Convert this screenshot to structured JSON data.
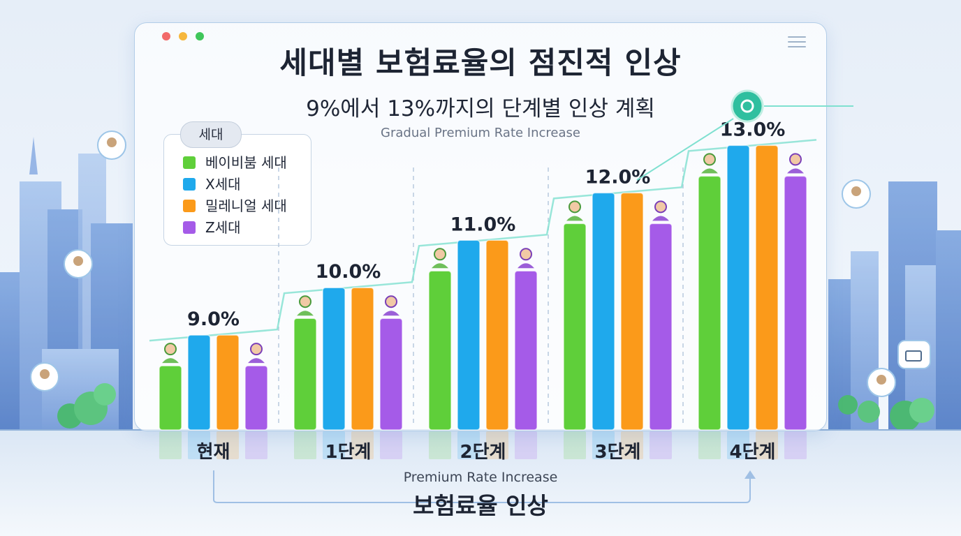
{
  "title": "세대별 보험료율의 점진적 인상",
  "subtitle": "9%에서 13%까지의 단계별 인상 계획",
  "caption": "Gradual Premium Rate Increase",
  "footer": {
    "caption": "Premium Rate Increase",
    "title": "보험료율 인상"
  },
  "legend": {
    "title": "세대"
  },
  "colors": {
    "green": "#5fcf3a",
    "blue": "#1fa9ec",
    "orange": "#fb9a1a",
    "purple": "#a55be8",
    "window_dots": [
      "#f26a6a",
      "#f6b73c",
      "#3fc65a"
    ]
  },
  "icons": [
    "person-avatar-icon",
    "gear-icon",
    "menu-icon",
    "chart-icon",
    "arrow-up-icon"
  ],
  "chart_data": {
    "type": "bar",
    "categories": [
      "현재",
      "1단계",
      "2단계",
      "3단계",
      "4단계"
    ],
    "stage_labels": [
      "9.0%",
      "10.0%",
      "11.0%",
      "12.0%",
      "13.0%"
    ],
    "series": [
      {
        "name": "베이비붐 세대",
        "color": "#5fcf3a",
        "values": [
          9.0,
          10.0,
          11.0,
          12.0,
          13.0
        ]
      },
      {
        "name": "X세대",
        "color": "#1fa9ec",
        "values": [
          9.0,
          10.0,
          11.0,
          12.0,
          13.0
        ]
      },
      {
        "name": "밀레니얼 세대",
        "color": "#fb9a1a",
        "values": [
          9.0,
          10.0,
          11.0,
          12.0,
          13.0
        ]
      },
      {
        "name": "Z세대",
        "color": "#a55be8",
        "values": [
          9.0,
          10.0,
          11.0,
          12.0,
          13.0
        ]
      }
    ],
    "ylim": [
      0,
      14
    ],
    "grid": false,
    "legend_position": "top-left"
  }
}
